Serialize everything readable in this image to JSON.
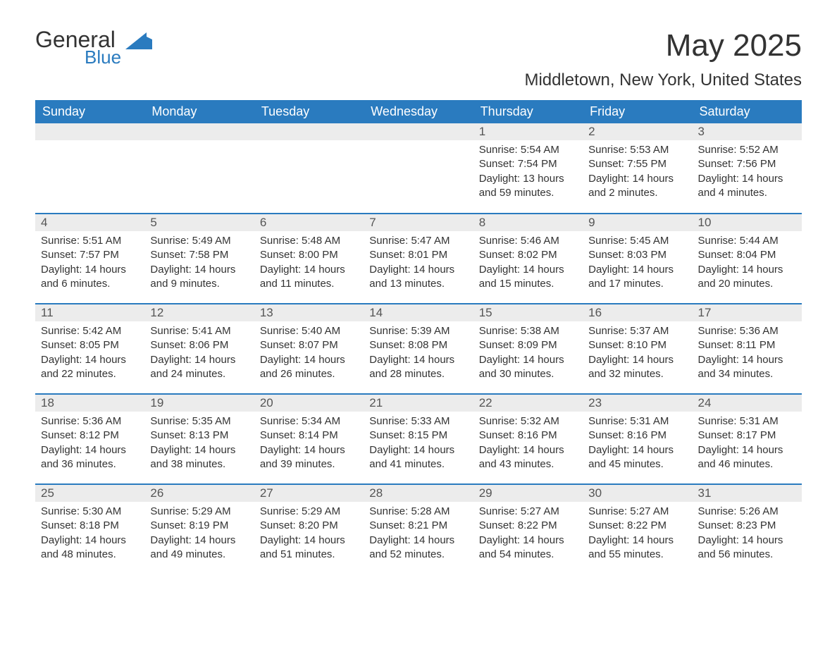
{
  "logo": {
    "general": "General",
    "blue": "Blue",
    "shape_color": "#2a7bbf"
  },
  "title": "May 2025",
  "subtitle": "Middletown, New York, United States",
  "weekdays": [
    "Sunday",
    "Monday",
    "Tuesday",
    "Wednesday",
    "Thursday",
    "Friday",
    "Saturday"
  ],
  "colors": {
    "header_bg": "#2a7bbf",
    "header_text": "#ffffff",
    "daynum_bg": "#ececec",
    "border": "#2a7bbf",
    "text": "#333333"
  },
  "weeks": [
    [
      {
        "n": "",
        "sr": "",
        "ss": "",
        "dl": ""
      },
      {
        "n": "",
        "sr": "",
        "ss": "",
        "dl": ""
      },
      {
        "n": "",
        "sr": "",
        "ss": "",
        "dl": ""
      },
      {
        "n": "",
        "sr": "",
        "ss": "",
        "dl": ""
      },
      {
        "n": "1",
        "sr": "Sunrise: 5:54 AM",
        "ss": "Sunset: 7:54 PM",
        "dl": "Daylight: 13 hours and 59 minutes."
      },
      {
        "n": "2",
        "sr": "Sunrise: 5:53 AM",
        "ss": "Sunset: 7:55 PM",
        "dl": "Daylight: 14 hours and 2 minutes."
      },
      {
        "n": "3",
        "sr": "Sunrise: 5:52 AM",
        "ss": "Sunset: 7:56 PM",
        "dl": "Daylight: 14 hours and 4 minutes."
      }
    ],
    [
      {
        "n": "4",
        "sr": "Sunrise: 5:51 AM",
        "ss": "Sunset: 7:57 PM",
        "dl": "Daylight: 14 hours and 6 minutes."
      },
      {
        "n": "5",
        "sr": "Sunrise: 5:49 AM",
        "ss": "Sunset: 7:58 PM",
        "dl": "Daylight: 14 hours and 9 minutes."
      },
      {
        "n": "6",
        "sr": "Sunrise: 5:48 AM",
        "ss": "Sunset: 8:00 PM",
        "dl": "Daylight: 14 hours and 11 minutes."
      },
      {
        "n": "7",
        "sr": "Sunrise: 5:47 AM",
        "ss": "Sunset: 8:01 PM",
        "dl": "Daylight: 14 hours and 13 minutes."
      },
      {
        "n": "8",
        "sr": "Sunrise: 5:46 AM",
        "ss": "Sunset: 8:02 PM",
        "dl": "Daylight: 14 hours and 15 minutes."
      },
      {
        "n": "9",
        "sr": "Sunrise: 5:45 AM",
        "ss": "Sunset: 8:03 PM",
        "dl": "Daylight: 14 hours and 17 minutes."
      },
      {
        "n": "10",
        "sr": "Sunrise: 5:44 AM",
        "ss": "Sunset: 8:04 PM",
        "dl": "Daylight: 14 hours and 20 minutes."
      }
    ],
    [
      {
        "n": "11",
        "sr": "Sunrise: 5:42 AM",
        "ss": "Sunset: 8:05 PM",
        "dl": "Daylight: 14 hours and 22 minutes."
      },
      {
        "n": "12",
        "sr": "Sunrise: 5:41 AM",
        "ss": "Sunset: 8:06 PM",
        "dl": "Daylight: 14 hours and 24 minutes."
      },
      {
        "n": "13",
        "sr": "Sunrise: 5:40 AM",
        "ss": "Sunset: 8:07 PM",
        "dl": "Daylight: 14 hours and 26 minutes."
      },
      {
        "n": "14",
        "sr": "Sunrise: 5:39 AM",
        "ss": "Sunset: 8:08 PM",
        "dl": "Daylight: 14 hours and 28 minutes."
      },
      {
        "n": "15",
        "sr": "Sunrise: 5:38 AM",
        "ss": "Sunset: 8:09 PM",
        "dl": "Daylight: 14 hours and 30 minutes."
      },
      {
        "n": "16",
        "sr": "Sunrise: 5:37 AM",
        "ss": "Sunset: 8:10 PM",
        "dl": "Daylight: 14 hours and 32 minutes."
      },
      {
        "n": "17",
        "sr": "Sunrise: 5:36 AM",
        "ss": "Sunset: 8:11 PM",
        "dl": "Daylight: 14 hours and 34 minutes."
      }
    ],
    [
      {
        "n": "18",
        "sr": "Sunrise: 5:36 AM",
        "ss": "Sunset: 8:12 PM",
        "dl": "Daylight: 14 hours and 36 minutes."
      },
      {
        "n": "19",
        "sr": "Sunrise: 5:35 AM",
        "ss": "Sunset: 8:13 PM",
        "dl": "Daylight: 14 hours and 38 minutes."
      },
      {
        "n": "20",
        "sr": "Sunrise: 5:34 AM",
        "ss": "Sunset: 8:14 PM",
        "dl": "Daylight: 14 hours and 39 minutes."
      },
      {
        "n": "21",
        "sr": "Sunrise: 5:33 AM",
        "ss": "Sunset: 8:15 PM",
        "dl": "Daylight: 14 hours and 41 minutes."
      },
      {
        "n": "22",
        "sr": "Sunrise: 5:32 AM",
        "ss": "Sunset: 8:16 PM",
        "dl": "Daylight: 14 hours and 43 minutes."
      },
      {
        "n": "23",
        "sr": "Sunrise: 5:31 AM",
        "ss": "Sunset: 8:16 PM",
        "dl": "Daylight: 14 hours and 45 minutes."
      },
      {
        "n": "24",
        "sr": "Sunrise: 5:31 AM",
        "ss": "Sunset: 8:17 PM",
        "dl": "Daylight: 14 hours and 46 minutes."
      }
    ],
    [
      {
        "n": "25",
        "sr": "Sunrise: 5:30 AM",
        "ss": "Sunset: 8:18 PM",
        "dl": "Daylight: 14 hours and 48 minutes."
      },
      {
        "n": "26",
        "sr": "Sunrise: 5:29 AM",
        "ss": "Sunset: 8:19 PM",
        "dl": "Daylight: 14 hours and 49 minutes."
      },
      {
        "n": "27",
        "sr": "Sunrise: 5:29 AM",
        "ss": "Sunset: 8:20 PM",
        "dl": "Daylight: 14 hours and 51 minutes."
      },
      {
        "n": "28",
        "sr": "Sunrise: 5:28 AM",
        "ss": "Sunset: 8:21 PM",
        "dl": "Daylight: 14 hours and 52 minutes."
      },
      {
        "n": "29",
        "sr": "Sunrise: 5:27 AM",
        "ss": "Sunset: 8:22 PM",
        "dl": "Daylight: 14 hours and 54 minutes."
      },
      {
        "n": "30",
        "sr": "Sunrise: 5:27 AM",
        "ss": "Sunset: 8:22 PM",
        "dl": "Daylight: 14 hours and 55 minutes."
      },
      {
        "n": "31",
        "sr": "Sunrise: 5:26 AM",
        "ss": "Sunset: 8:23 PM",
        "dl": "Daylight: 14 hours and 56 minutes."
      }
    ]
  ]
}
